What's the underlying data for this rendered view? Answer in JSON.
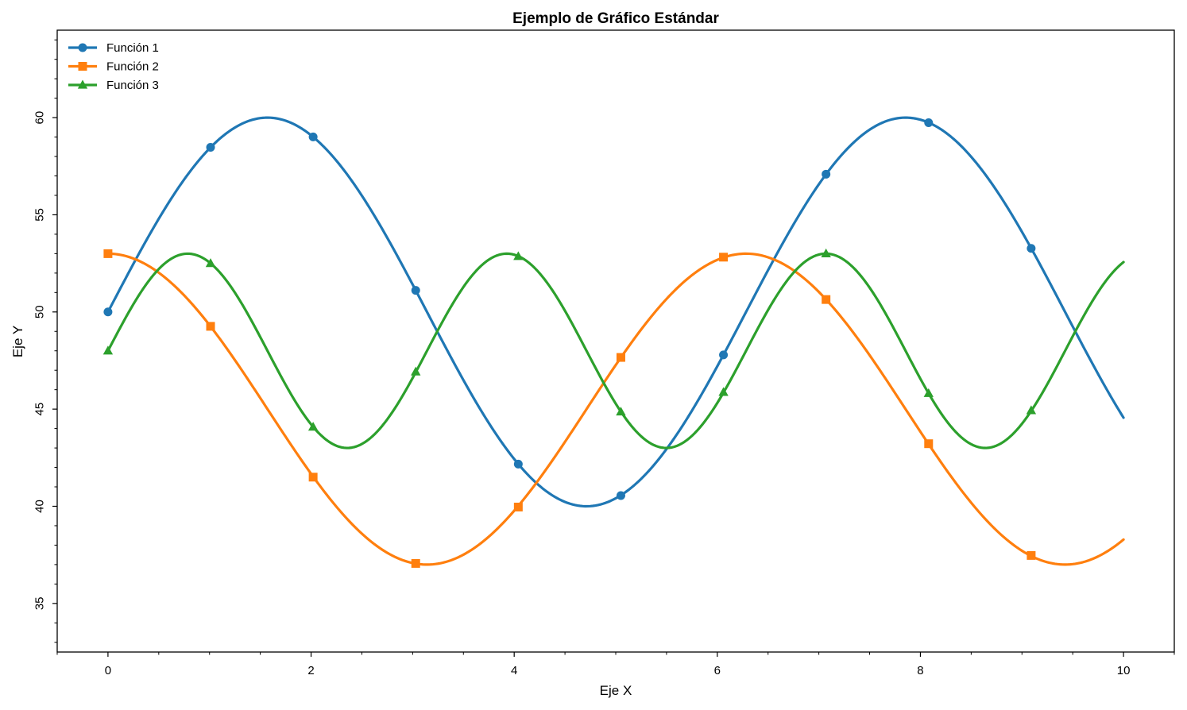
{
  "chart_data": {
    "type": "line",
    "title": "Ejemplo de Gráfico Estándar",
    "xlabel": "Eje X",
    "ylabel": "Eje Y",
    "xlim": [
      -0.5,
      10.5
    ],
    "ylim": [
      32.5,
      64.5
    ],
    "xticks": [
      0,
      2,
      4,
      6,
      8,
      10
    ],
    "yticks": [
      35,
      40,
      45,
      50,
      55,
      60
    ],
    "x_minor_step": 0.5,
    "y_minor_step": 1,
    "grid": false,
    "legend_position": "top-left",
    "series": [
      {
        "name": "Función 1",
        "color": "#1f77b4",
        "marker": "circle",
        "formula": "50 + 10*sin(x)",
        "marker_x": [
          0,
          1.0101,
          2.0202,
          3.0303,
          4.0404,
          5.0505,
          6.0606,
          7.0707,
          8.0808,
          9.0909
        ],
        "marker_y": [
          50.0,
          58.47,
          59.01,
          51.11,
          42.17,
          40.55,
          47.79,
          57.09,
          59.74,
          53.27
        ]
      },
      {
        "name": "Función 2",
        "color": "#ff7f0e",
        "marker": "square",
        "formula": "45 + 8*cos(x)",
        "marker_x": [
          0,
          1.0101,
          2.0202,
          3.0303,
          4.0404,
          5.0505,
          6.0606,
          7.0707,
          8.0808,
          9.0909
        ],
        "marker_y": [
          53.0,
          49.26,
          41.5,
          37.06,
          39.96,
          47.66,
          52.82,
          50.64,
          43.22,
          37.47
        ]
      },
      {
        "name": "Función 3",
        "color": "#2ca02c",
        "marker": "triangle",
        "formula": "48 + 5*sin(2x)",
        "marker_x": [
          0,
          1.0101,
          2.0202,
          3.0303,
          4.0404,
          5.0505,
          6.0606,
          7.0707,
          8.0808,
          9.0909
        ],
        "marker_y": [
          48.0,
          52.5,
          44.08,
          46.92,
          52.86,
          44.86,
          45.87,
          53.0,
          45.81,
          44.93
        ]
      }
    ]
  }
}
